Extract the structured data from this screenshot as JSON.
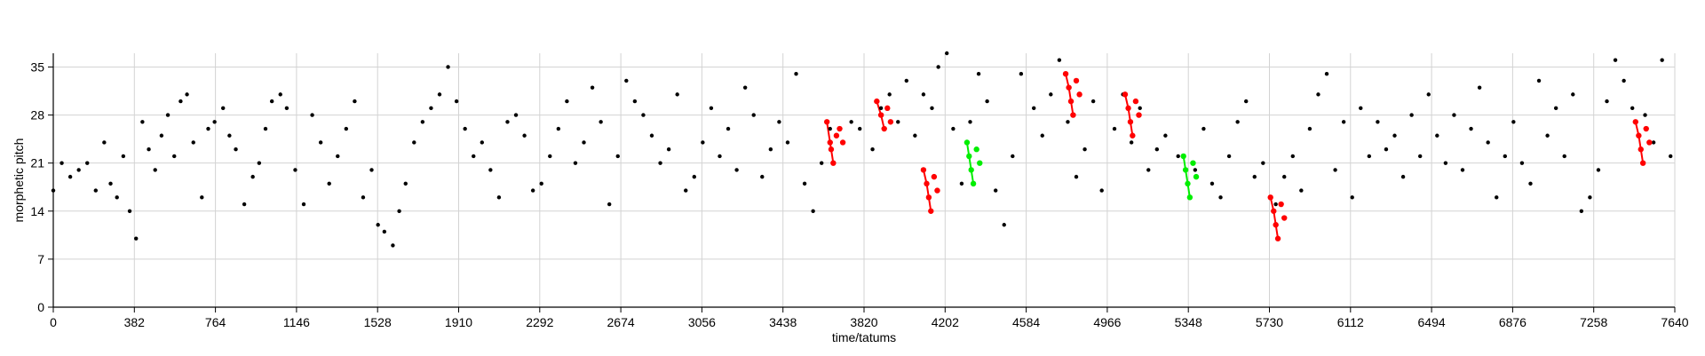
{
  "chart_data": {
    "type": "scatter",
    "title": "",
    "xlabel": "time/tatums",
    "ylabel": "morphetic pitch",
    "xlim": [
      0,
      7640
    ],
    "ylim": [
      0,
      37
    ],
    "x_ticks": [
      "0",
      "382",
      "764",
      "1146",
      "1528",
      "1910",
      "2292",
      "2674",
      "3056",
      "3438",
      "3820",
      "4202",
      "4584",
      "4966",
      "5348",
      "5730",
      "6112",
      "6494",
      "6876",
      "7258",
      "7640"
    ],
    "y_ticks": [
      "0",
      "7",
      "14",
      "21",
      "28",
      "35"
    ],
    "grid": true,
    "colors": {
      "notes": "#000000",
      "pattern_red": "#ff0000",
      "pattern_green": "#00ee00",
      "grid": "#d3d3d3"
    },
    "series": [
      {
        "color": "#000000",
        "points": [
          [
            0,
            17
          ],
          [
            40,
            21
          ],
          [
            80,
            19
          ],
          [
            120,
            20
          ],
          [
            160,
            21
          ],
          [
            200,
            17
          ],
          [
            240,
            24
          ],
          [
            270,
            18
          ],
          [
            300,
            16
          ],
          [
            330,
            22
          ],
          [
            360,
            14
          ],
          [
            390,
            10
          ],
          [
            420,
            27
          ],
          [
            450,
            23
          ],
          [
            480,
            20
          ],
          [
            510,
            25
          ],
          [
            540,
            28
          ],
          [
            570,
            22
          ],
          [
            600,
            30
          ],
          [
            630,
            31
          ],
          [
            660,
            24
          ],
          [
            700,
            16
          ],
          [
            730,
            26
          ],
          [
            760,
            27
          ],
          [
            800,
            29
          ],
          [
            830,
            25
          ],
          [
            860,
            23
          ],
          [
            900,
            15
          ],
          [
            940,
            19
          ],
          [
            970,
            21
          ],
          [
            1000,
            26
          ],
          [
            1030,
            30
          ],
          [
            1070,
            31
          ],
          [
            1100,
            29
          ],
          [
            1140,
            20
          ],
          [
            1180,
            15
          ],
          [
            1220,
            28
          ],
          [
            1260,
            24
          ],
          [
            1300,
            18
          ],
          [
            1340,
            22
          ],
          [
            1380,
            26
          ],
          [
            1420,
            30
          ],
          [
            1460,
            16
          ],
          [
            1500,
            20
          ],
          [
            1530,
            12
          ],
          [
            1560,
            11
          ],
          [
            1600,
            9
          ],
          [
            1630,
            14
          ],
          [
            1660,
            18
          ],
          [
            1700,
            24
          ],
          [
            1740,
            27
          ],
          [
            1780,
            29
          ],
          [
            1820,
            31
          ],
          [
            1860,
            35
          ],
          [
            1900,
            30
          ],
          [
            1940,
            26
          ],
          [
            1980,
            22
          ],
          [
            2020,
            24
          ],
          [
            2060,
            20
          ],
          [
            2100,
            16
          ],
          [
            2140,
            27
          ],
          [
            2180,
            28
          ],
          [
            2220,
            25
          ],
          [
            2260,
            17
          ],
          [
            2300,
            18
          ],
          [
            2340,
            22
          ],
          [
            2380,
            26
          ],
          [
            2420,
            30
          ],
          [
            2460,
            21
          ],
          [
            2500,
            24
          ],
          [
            2540,
            32
          ],
          [
            2580,
            27
          ],
          [
            2620,
            15
          ],
          [
            2660,
            22
          ],
          [
            2700,
            33
          ],
          [
            2740,
            30
          ],
          [
            2780,
            28
          ],
          [
            2820,
            25
          ],
          [
            2860,
            21
          ],
          [
            2900,
            23
          ],
          [
            2940,
            31
          ],
          [
            2980,
            17
          ],
          [
            3020,
            19
          ],
          [
            3060,
            24
          ],
          [
            3100,
            29
          ],
          [
            3140,
            22
          ],
          [
            3180,
            26
          ],
          [
            3220,
            20
          ],
          [
            3260,
            32
          ],
          [
            3300,
            28
          ],
          [
            3340,
            19
          ],
          [
            3380,
            23
          ],
          [
            3420,
            27
          ],
          [
            3460,
            24
          ],
          [
            3500,
            34
          ],
          [
            3540,
            18
          ],
          [
            3580,
            14
          ],
          [
            3620,
            21
          ],
          [
            3660,
            26
          ],
          [
            3720,
            24
          ],
          [
            3760,
            27
          ],
          [
            3800,
            26
          ],
          [
            3860,
            23
          ],
          [
            3900,
            29
          ],
          [
            3940,
            31
          ],
          [
            3980,
            27
          ],
          [
            4020,
            33
          ],
          [
            4060,
            25
          ],
          [
            4100,
            31
          ],
          [
            4140,
            29
          ],
          [
            4170,
            35
          ],
          [
            4210,
            37
          ],
          [
            4240,
            26
          ],
          [
            4280,
            18
          ],
          [
            4320,
            27
          ],
          [
            4360,
            34
          ],
          [
            4400,
            30
          ],
          [
            4440,
            17
          ],
          [
            4480,
            12
          ],
          [
            4520,
            22
          ],
          [
            4560,
            34
          ],
          [
            4620,
            29
          ],
          [
            4660,
            25
          ],
          [
            4700,
            31
          ],
          [
            4740,
            36
          ],
          [
            4780,
            27
          ],
          [
            4820,
            19
          ],
          [
            4860,
            23
          ],
          [
            4900,
            30
          ],
          [
            4940,
            17
          ],
          [
            5000,
            26
          ],
          [
            5040,
            31
          ],
          [
            5080,
            24
          ],
          [
            5120,
            29
          ],
          [
            5160,
            20
          ],
          [
            5200,
            23
          ],
          [
            5240,
            25
          ],
          [
            5300,
            22
          ],
          [
            5380,
            20
          ],
          [
            5420,
            26
          ],
          [
            5460,
            18
          ],
          [
            5500,
            16
          ],
          [
            5540,
            22
          ],
          [
            5580,
            27
          ],
          [
            5620,
            30
          ],
          [
            5660,
            19
          ],
          [
            5700,
            21
          ],
          [
            5760,
            15
          ],
          [
            5800,
            19
          ],
          [
            5840,
            22
          ],
          [
            5880,
            17
          ],
          [
            5920,
            26
          ],
          [
            5960,
            31
          ],
          [
            6000,
            34
          ],
          [
            6040,
            20
          ],
          [
            6080,
            27
          ],
          [
            6120,
            16
          ],
          [
            6160,
            29
          ],
          [
            6200,
            22
          ],
          [
            6240,
            27
          ],
          [
            6280,
            23
          ],
          [
            6320,
            25
          ],
          [
            6360,
            19
          ],
          [
            6400,
            28
          ],
          [
            6440,
            22
          ],
          [
            6480,
            31
          ],
          [
            6520,
            25
          ],
          [
            6560,
            21
          ],
          [
            6600,
            28
          ],
          [
            6640,
            20
          ],
          [
            6680,
            26
          ],
          [
            6720,
            32
          ],
          [
            6760,
            24
          ],
          [
            6800,
            16
          ],
          [
            6840,
            22
          ],
          [
            6880,
            27
          ],
          [
            6920,
            21
          ],
          [
            6960,
            18
          ],
          [
            7000,
            33
          ],
          [
            7040,
            25
          ],
          [
            7080,
            29
          ],
          [
            7120,
            22
          ],
          [
            7160,
            31
          ],
          [
            7200,
            14
          ],
          [
            7240,
            16
          ],
          [
            7280,
            20
          ],
          [
            7320,
            30
          ],
          [
            7360,
            36
          ],
          [
            7400,
            33
          ],
          [
            7440,
            29
          ],
          [
            7500,
            28
          ],
          [
            7540,
            24
          ],
          [
            7580,
            36
          ],
          [
            7620,
            22
          ]
        ]
      },
      {
        "color": "#ff0000",
        "points": [
          [
            3645,
            27
          ],
          [
            3660,
            24
          ],
          [
            3665,
            23
          ],
          [
            3675,
            21
          ],
          [
            3690,
            25
          ],
          [
            3705,
            26
          ],
          [
            3720,
            24
          ],
          [
            3880,
            30
          ],
          [
            3900,
            28
          ],
          [
            3915,
            26
          ],
          [
            3930,
            29
          ],
          [
            3945,
            27
          ],
          [
            4100,
            20
          ],
          [
            4115,
            18
          ],
          [
            4125,
            16
          ],
          [
            4135,
            14
          ],
          [
            4150,
            19
          ],
          [
            4165,
            17
          ],
          [
            4770,
            34
          ],
          [
            4785,
            32
          ],
          [
            4795,
            30
          ],
          [
            4805,
            28
          ],
          [
            4820,
            33
          ],
          [
            4835,
            31
          ],
          [
            5050,
            31
          ],
          [
            5065,
            29
          ],
          [
            5075,
            27
          ],
          [
            5085,
            25
          ],
          [
            5100,
            30
          ],
          [
            5115,
            28
          ],
          [
            5735,
            16
          ],
          [
            5750,
            14
          ],
          [
            5760,
            12
          ],
          [
            5770,
            10
          ],
          [
            5785,
            15
          ],
          [
            5800,
            13
          ],
          [
            7455,
            27
          ],
          [
            7470,
            25
          ],
          [
            7480,
            23
          ],
          [
            7490,
            21
          ],
          [
            7505,
            26
          ],
          [
            7520,
            24
          ]
        ]
      },
      {
        "color": "#00ee00",
        "points": [
          [
            4305,
            24
          ],
          [
            4315,
            22
          ],
          [
            4325,
            20
          ],
          [
            4335,
            18
          ],
          [
            4350,
            23
          ],
          [
            4365,
            21
          ],
          [
            5325,
            22
          ],
          [
            5335,
            20
          ],
          [
            5345,
            18
          ],
          [
            5355,
            16
          ],
          [
            5370,
            21
          ],
          [
            5385,
            19
          ]
        ]
      }
    ],
    "lines": [
      {
        "color": "#ff0000",
        "points": [
          [
            3645,
            27
          ],
          [
            3660,
            24
          ],
          [
            3665,
            23
          ],
          [
            3675,
            21
          ]
        ]
      },
      {
        "color": "#ff0000",
        "points": [
          [
            3880,
            30
          ],
          [
            3900,
            28
          ],
          [
            3915,
            26
          ]
        ]
      },
      {
        "color": "#ff0000",
        "points": [
          [
            4100,
            20
          ],
          [
            4115,
            18
          ],
          [
            4125,
            16
          ],
          [
            4135,
            14
          ]
        ]
      },
      {
        "color": "#ff0000",
        "points": [
          [
            4770,
            34
          ],
          [
            4785,
            32
          ],
          [
            4795,
            30
          ],
          [
            4805,
            28
          ]
        ]
      },
      {
        "color": "#ff0000",
        "points": [
          [
            5050,
            31
          ],
          [
            5065,
            29
          ],
          [
            5075,
            27
          ],
          [
            5085,
            25
          ]
        ]
      },
      {
        "color": "#ff0000",
        "points": [
          [
            5735,
            16
          ],
          [
            5750,
            14
          ],
          [
            5760,
            12
          ],
          [
            5770,
            10
          ]
        ]
      },
      {
        "color": "#ff0000",
        "points": [
          [
            7455,
            27
          ],
          [
            7470,
            25
          ],
          [
            7480,
            23
          ],
          [
            7490,
            21
          ]
        ]
      },
      {
        "color": "#00ee00",
        "points": [
          [
            4305,
            24
          ],
          [
            4315,
            22
          ],
          [
            4325,
            20
          ],
          [
            4335,
            18
          ]
        ]
      },
      {
        "color": "#00ee00",
        "points": [
          [
            5325,
            22
          ],
          [
            5335,
            20
          ],
          [
            5345,
            18
          ],
          [
            5355,
            16
          ]
        ]
      }
    ]
  }
}
